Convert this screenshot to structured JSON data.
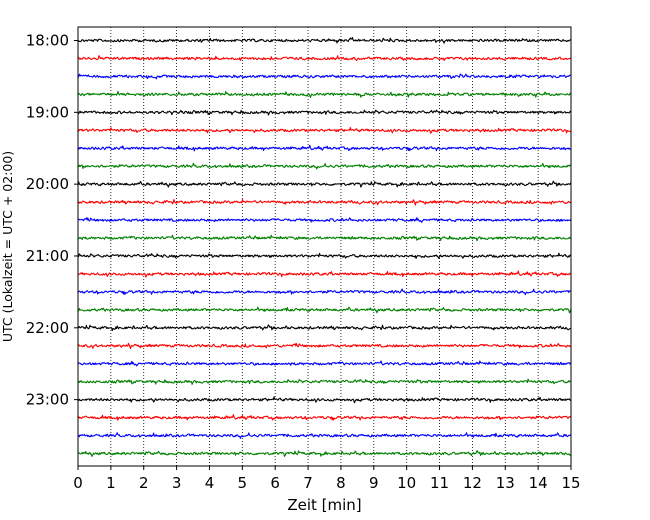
{
  "chart_data": {
    "type": "line",
    "subtype": "seismogram-helicorder",
    "xlabel": "Zeit  [min]",
    "ylabel": "UTC (Lokalzeit = UTC + 02:00)",
    "xlim": [
      0,
      15
    ],
    "x_ticks": [
      0,
      1,
      2,
      3,
      4,
      5,
      6,
      7,
      8,
      9,
      10,
      11,
      12,
      13,
      14,
      15
    ],
    "x_tick_labels": [
      "0",
      "1",
      "2",
      "3",
      "4",
      "5",
      "6",
      "7",
      "8",
      "9",
      "10",
      "11",
      "12",
      "13",
      "14",
      "15"
    ],
    "y_tick_labels": [
      "18:00",
      "19:00",
      "20:00",
      "21:00",
      "22:00",
      "23:00"
    ],
    "trace_interval_minutes": 15,
    "traces_per_hour": 4,
    "trace_count": 24,
    "vertical_grid": "dotted, every minute",
    "trace_colors": [
      "#000000",
      "#ff0000",
      "#0000ff",
      "#008000"
    ],
    "traces": [
      {
        "start": "18:00",
        "color": "#000000"
      },
      {
        "start": "18:15",
        "color": "#ff0000"
      },
      {
        "start": "18:30",
        "color": "#0000ff"
      },
      {
        "start": "18:45",
        "color": "#008000"
      },
      {
        "start": "19:00",
        "color": "#000000"
      },
      {
        "start": "19:15",
        "color": "#ff0000"
      },
      {
        "start": "19:30",
        "color": "#0000ff"
      },
      {
        "start": "19:45",
        "color": "#008000"
      },
      {
        "start": "20:00",
        "color": "#000000"
      },
      {
        "start": "20:15",
        "color": "#ff0000"
      },
      {
        "start": "20:30",
        "color": "#0000ff"
      },
      {
        "start": "20:45",
        "color": "#008000"
      },
      {
        "start": "21:00",
        "color": "#000000"
      },
      {
        "start": "21:15",
        "color": "#ff0000"
      },
      {
        "start": "21:30",
        "color": "#0000ff"
      },
      {
        "start": "21:45",
        "color": "#008000"
      },
      {
        "start": "22:00",
        "color": "#000000"
      },
      {
        "start": "22:15",
        "color": "#ff0000"
      },
      {
        "start": "22:30",
        "color": "#0000ff"
      },
      {
        "start": "22:45",
        "color": "#008000"
      },
      {
        "start": "23:00",
        "color": "#000000"
      },
      {
        "start": "23:15",
        "color": "#ff0000"
      },
      {
        "start": "23:30",
        "color": "#0000ff"
      },
      {
        "start": "23:45",
        "color": "#008000"
      }
    ]
  }
}
